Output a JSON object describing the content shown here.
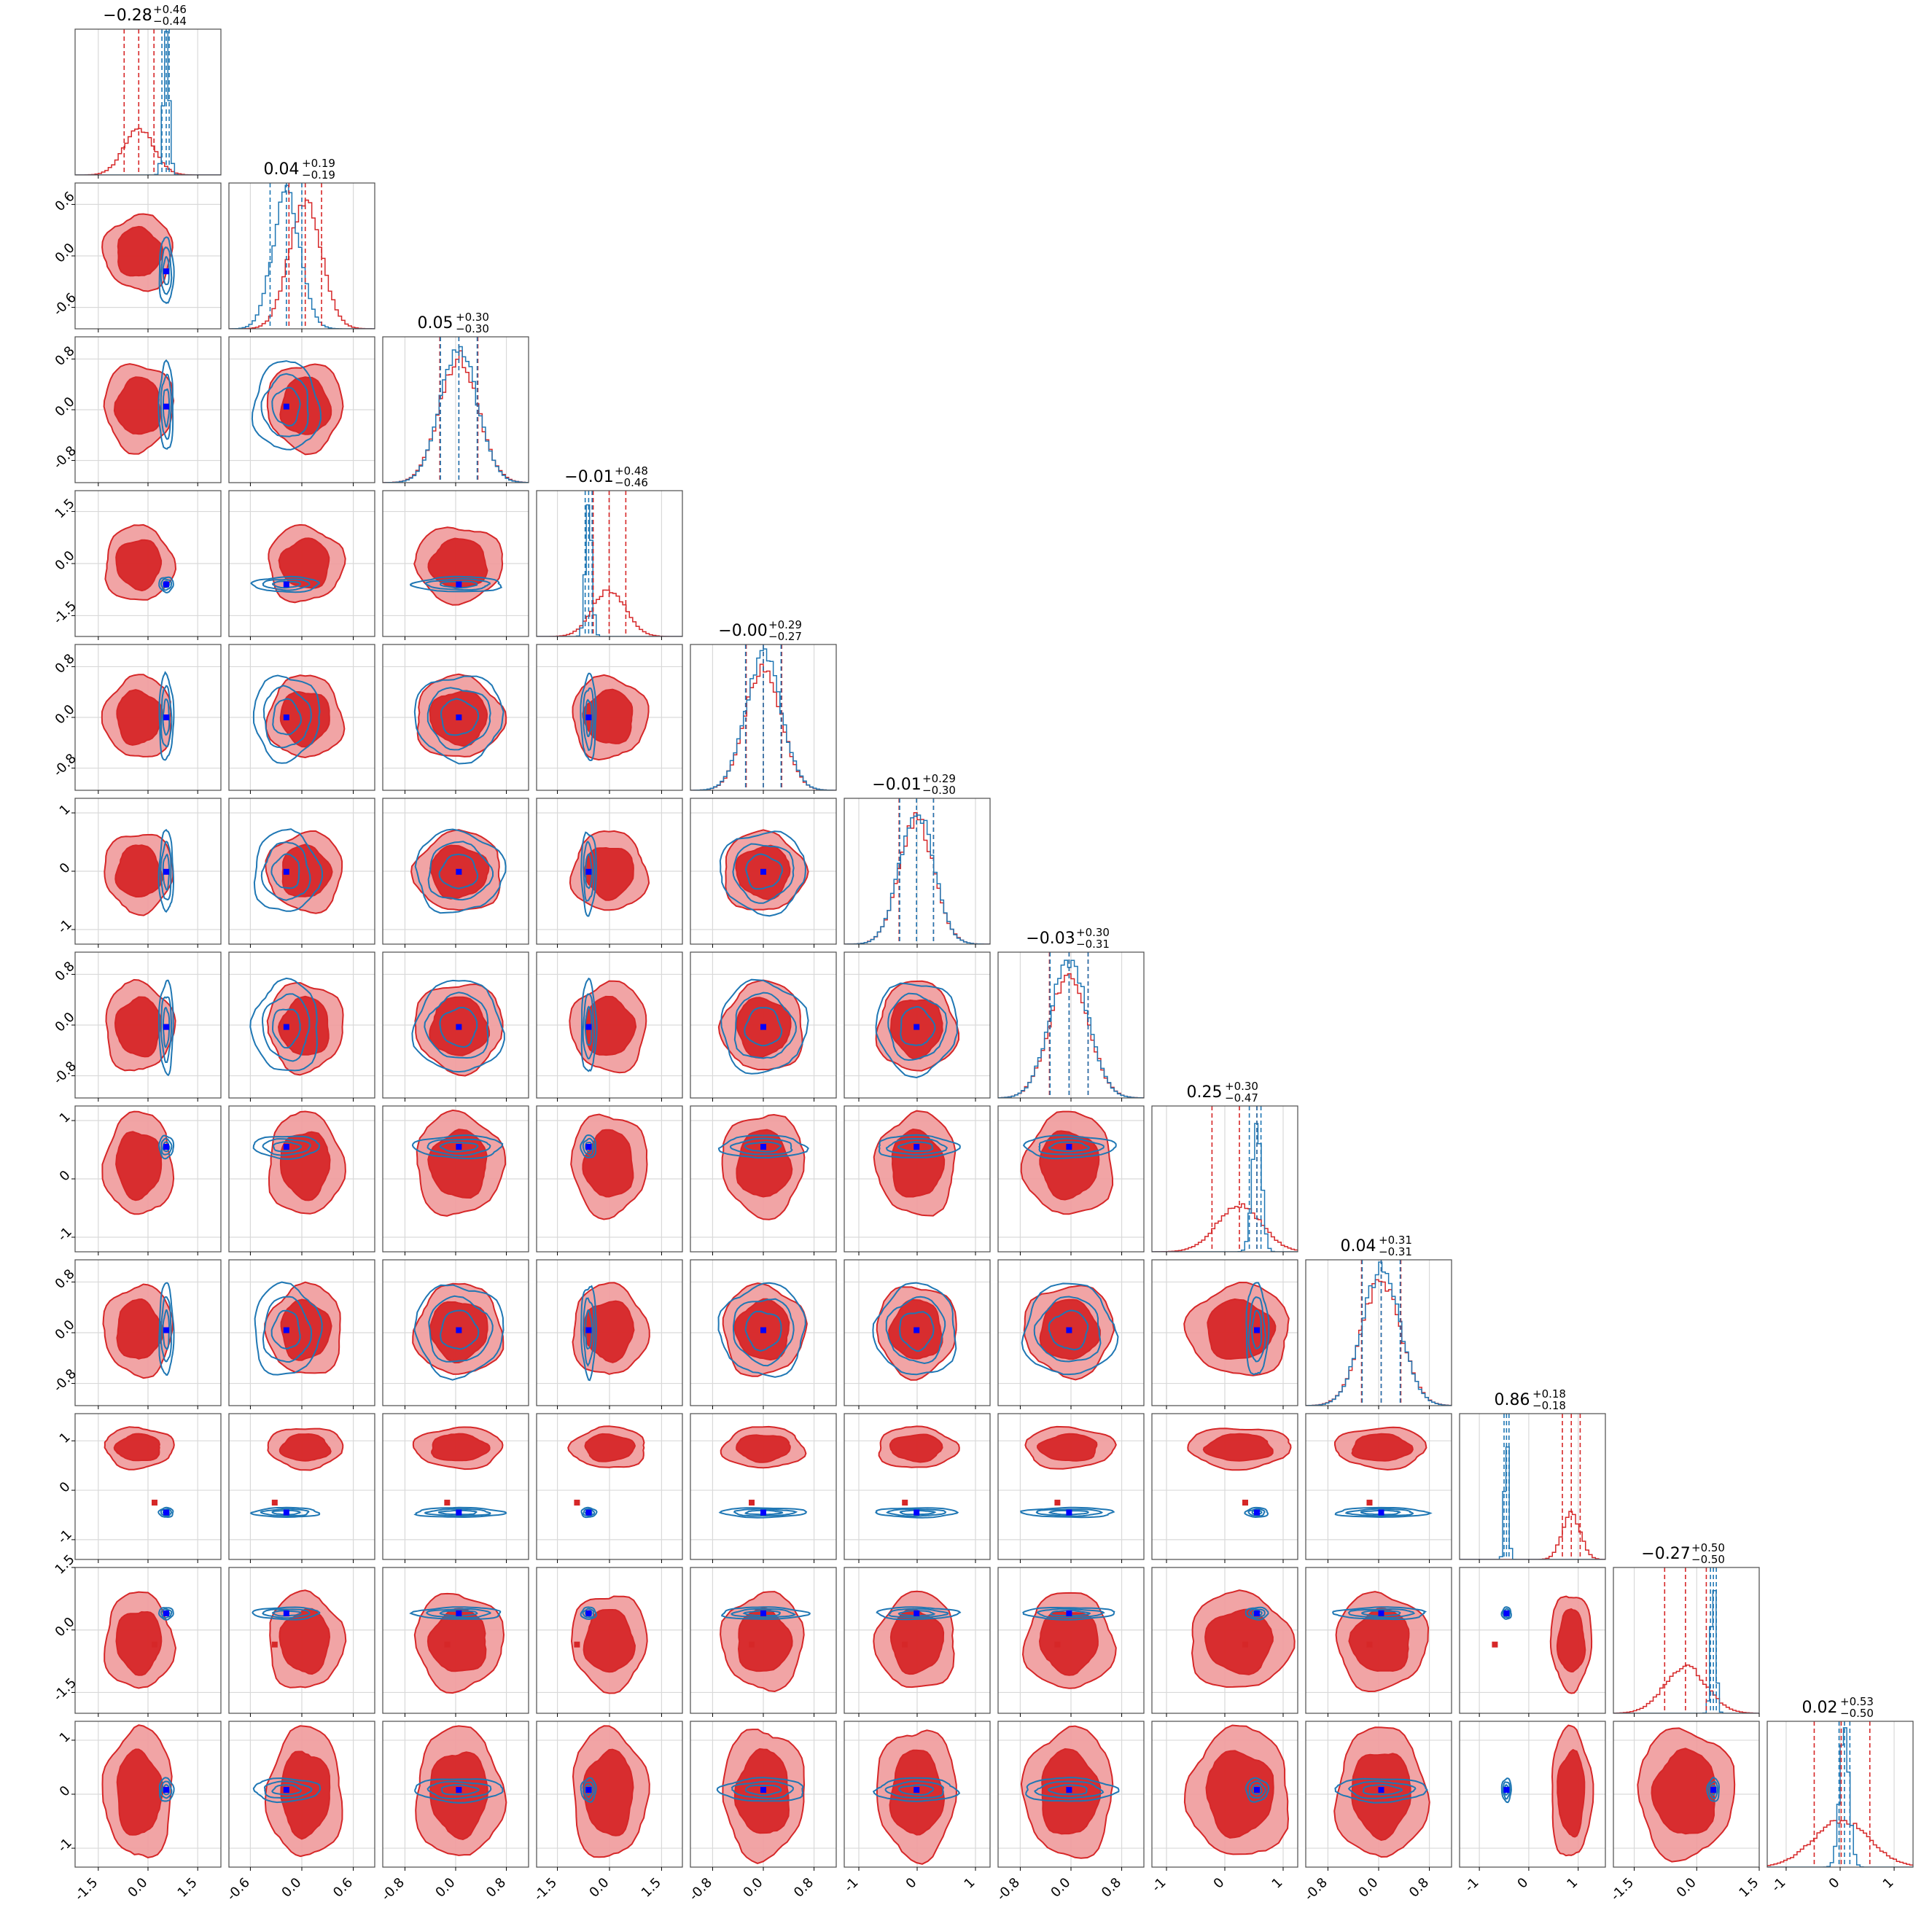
{
  "chart_data": {
    "type": "corner",
    "n_params": 12,
    "grid": true,
    "series": [
      {
        "name": "",
        "color": "#d62728",
        "style": "filled contours + step histograms"
      },
      {
        "name": "",
        "color": "#1f77b4",
        "style": "line contours + step histograms"
      }
    ],
    "truth_color": "#0000ff",
    "params": [
      {
        "lim": [
          -2.2,
          2.2
        ],
        "ticks": [
          -1.5,
          0.0,
          1.5
        ],
        "tick_labels": [
          "-1.5",
          "0.0",
          "1.5"
        ],
        "title_value": "−0.28",
        "title_plus": "+0.46",
        "title_minus": "−0.44",
        "red": {
          "mu": -0.28,
          "sd": 0.45
        },
        "blue": {
          "mu": 0.55,
          "sd": 0.09
        },
        "truth": 0.55,
        "red_q": [
          -0.72,
          -0.28,
          0.18
        ],
        "blue_q": [
          0.42,
          0.55,
          0.64
        ]
      },
      {
        "lim": [
          -0.85,
          0.85
        ],
        "ticks": [
          -0.6,
          0.0,
          0.6
        ],
        "tick_labels": [
          "-0.6",
          "0.0",
          "0.6"
        ],
        "title_value": "0.04",
        "title_plus": "+0.19",
        "title_minus": "−0.19",
        "red": {
          "mu": 0.04,
          "sd": 0.19
        },
        "blue": {
          "mu": -0.18,
          "sd": 0.16
        },
        "truth": -0.18,
        "red_q": [
          -0.15,
          0.04,
          0.23
        ],
        "blue_q": [
          -0.37,
          -0.18,
          0.0
        ]
      },
      {
        "lim": [
          -1.15,
          1.15
        ],
        "ticks": [
          -0.8,
          0.0,
          0.8
        ],
        "tick_labels": [
          "-0.8",
          "0.0",
          "0.8"
        ],
        "title_value": "0.05",
        "title_plus": "+0.30",
        "title_minus": "−0.30",
        "red": {
          "mu": 0.05,
          "sd": 0.3
        },
        "blue": {
          "mu": 0.05,
          "sd": 0.29
        },
        "truth": 0.05,
        "red_q": [
          -0.25,
          0.05,
          0.35
        ],
        "blue_q": [
          -0.24,
          0.05,
          0.34
        ]
      },
      {
        "lim": [
          -2.1,
          2.1
        ],
        "ticks": [
          -1.5,
          0.0,
          1.5
        ],
        "tick_labels": [
          "-1.5",
          "0.0",
          "1.5"
        ],
        "title_value": "−0.01",
        "title_plus": "+0.48",
        "title_minus": "−0.46",
        "red": {
          "mu": -0.01,
          "sd": 0.47
        },
        "blue": {
          "mu": -0.6,
          "sd": 0.09
        },
        "truth": -0.6,
        "red_q": [
          -0.47,
          -0.01,
          0.47
        ],
        "blue_q": [
          -0.7,
          -0.6,
          -0.5
        ]
      },
      {
        "lim": [
          -1.15,
          1.15
        ],
        "ticks": [
          -0.8,
          0.0,
          0.8
        ],
        "tick_labels": [
          "-0.8",
          "0.0",
          "0.8"
        ],
        "title_value": "−0.00",
        "title_plus": "+0.29",
        "title_minus": "−0.27",
        "red": {
          "mu": 0.0,
          "sd": 0.28
        },
        "blue": {
          "mu": 0.0,
          "sd": 0.28
        },
        "truth": 0.0,
        "red_q": [
          -0.27,
          0.0,
          0.29
        ],
        "blue_q": [
          -0.28,
          0.0,
          0.28
        ]
      },
      {
        "lim": [
          -1.25,
          1.25
        ],
        "ticks": [
          -1,
          0,
          1
        ],
        "tick_labels": [
          "-1",
          "0",
          "1"
        ],
        "title_value": "−0.01",
        "title_plus": "+0.29",
        "title_minus": "−0.30",
        "red": {
          "mu": -0.01,
          "sd": 0.295
        },
        "blue": {
          "mu": -0.01,
          "sd": 0.29
        },
        "truth": -0.01,
        "red_q": [
          -0.31,
          -0.01,
          0.28
        ],
        "blue_q": [
          -0.3,
          -0.01,
          0.28
        ]
      },
      {
        "lim": [
          -1.15,
          1.15
        ],
        "ticks": [
          -0.8,
          0.0,
          0.8
        ],
        "tick_labels": [
          "-0.8",
          "0.0",
          "0.8"
        ],
        "title_value": "−0.03",
        "title_plus": "+0.30",
        "title_minus": "−0.31",
        "red": {
          "mu": -0.03,
          "sd": 0.305
        },
        "blue": {
          "mu": -0.03,
          "sd": 0.3
        },
        "truth": -0.03,
        "red_q": [
          -0.34,
          -0.03,
          0.27
        ],
        "blue_q": [
          -0.33,
          -0.03,
          0.27
        ]
      },
      {
        "lim": [
          -1.25,
          1.25
        ],
        "ticks": [
          -1,
          0,
          1
        ],
        "tick_labels": [
          "-1",
          "0",
          "1"
        ],
        "title_value": "0.25",
        "title_plus": "+0.30",
        "title_minus": "−0.47",
        "red": {
          "mu": 0.25,
          "sd": 0.38
        },
        "blue": {
          "mu": 0.55,
          "sd": 0.08
        },
        "truth": 0.55,
        "red_q": [
          -0.22,
          0.25,
          0.55
        ],
        "blue_q": [
          0.42,
          0.55,
          0.62
        ]
      },
      {
        "lim": [
          -1.15,
          1.15
        ],
        "ticks": [
          -0.8,
          0.0,
          0.8
        ],
        "tick_labels": [
          "-0.8",
          "0.0",
          "0.8"
        ],
        "title_value": "0.04",
        "title_plus": "+0.31",
        "title_minus": "−0.31",
        "red": {
          "mu": 0.04,
          "sd": 0.31
        },
        "blue": {
          "mu": 0.04,
          "sd": 0.3
        },
        "truth": 0.04,
        "red_q": [
          -0.27,
          0.04,
          0.35
        ],
        "blue_q": [
          -0.26,
          0.04,
          0.34
        ]
      },
      {
        "lim": [
          -1.4,
          1.55
        ],
        "ticks": [
          -1,
          0,
          1
        ],
        "tick_labels": [
          "-1",
          "0",
          "1"
        ],
        "title_value": "0.86",
        "title_plus": "+0.18",
        "title_minus": "−0.18",
        "red": {
          "mu": 0.86,
          "sd": 0.18
        },
        "blue": {
          "mu": -0.45,
          "sd": 0.04
        },
        "truth": -0.45,
        "red_q": [
          0.68,
          0.86,
          1.04
        ],
        "blue_q": [
          -0.5,
          -0.45,
          -0.4
        ],
        "marker": -0.25
      },
      {
        "lim": [
          -2.0,
          1.5
        ],
        "ticks": [
          -1.5,
          0.0,
          1.5
        ],
        "tick_labels": [
          "-1.5",
          "0.0",
          "1.5"
        ],
        "title_value": "−0.27",
        "title_plus": "+0.50",
        "title_minus": "−0.50",
        "red": {
          "mu": -0.27,
          "sd": 0.5
        },
        "blue": {
          "mu": 0.4,
          "sd": 0.06
        },
        "truth": 0.4,
        "red_q": [
          -0.77,
          -0.27,
          0.23
        ],
        "blue_q": [
          0.33,
          0.4,
          0.47
        ],
        "marker": -0.35
      },
      {
        "lim": [
          -1.35,
          1.35
        ],
        "ticks": [
          -1,
          0,
          1
        ],
        "tick_labels": [
          "-1",
          "0",
          "1"
        ],
        "title_value": "0.02",
        "title_plus": "+0.53",
        "title_minus": "−0.50",
        "red": {
          "mu": 0.02,
          "sd": 0.52
        },
        "blue": {
          "mu": 0.08,
          "sd": 0.09
        },
        "truth": 0.08,
        "red_q": [
          -0.48,
          0.02,
          0.55
        ],
        "blue_q": [
          -0.02,
          0.08,
          0.18
        ]
      }
    ]
  }
}
